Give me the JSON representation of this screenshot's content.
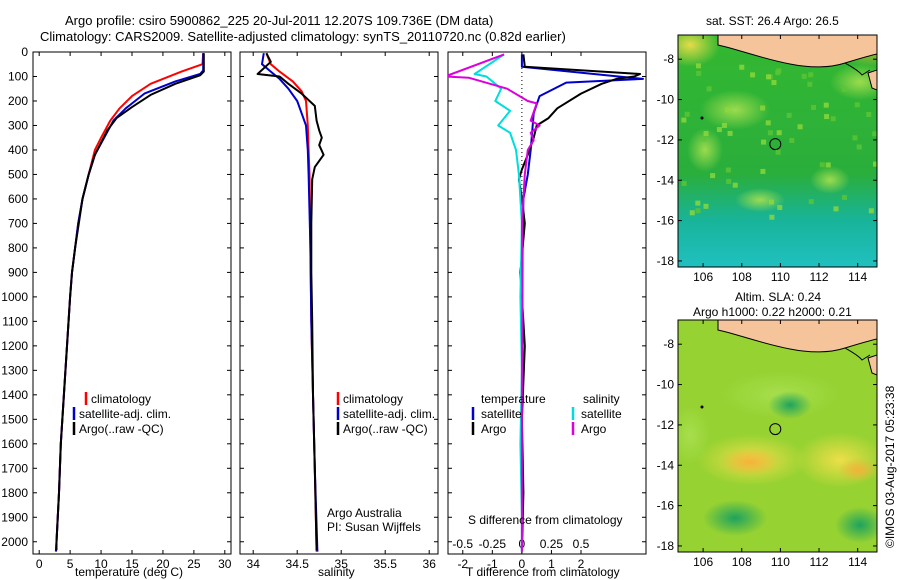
{
  "header": {
    "line1": "Argo profile: csiro 5900862_225 20-Jul-2011 12.207S 109.736E (DM data)",
    "line2": "Climatology: CARS2009. Satellite-adjusted climatology: synTS_20110720.nc (0.82d earlier)"
  },
  "side_note": "©IMOS 03-Aug-2017 05:23:38",
  "colors": {
    "climatology": "#ff0000",
    "satellite": "#0000cc",
    "argo": "#000000",
    "sat_sal": "#00dddd",
    "argo_sal": "#dd00dd",
    "land": "#f5c49b"
  },
  "chart_data": [
    {
      "id": "temperature",
      "type": "line",
      "xlabel": "temperature (deg C)",
      "xlim": [
        -1,
        31
      ],
      "xticks": [
        0,
        5,
        10,
        15,
        20,
        25,
        30
      ],
      "ylim": [
        2050,
        0
      ],
      "yticks": [
        0,
        100,
        200,
        300,
        400,
        500,
        600,
        700,
        800,
        900,
        1000,
        1100,
        1200,
        1300,
        1400,
        1500,
        1600,
        1700,
        1800,
        1900,
        2000
      ],
      "legend": {
        "entries": [
          "climatology",
          "satellite-adj. clim.",
          "Argo(..raw -QC)"
        ]
      },
      "series": [
        {
          "name": "climatology",
          "color": "#ff0000",
          "points": [
            [
              26.5,
              5
            ],
            [
              26.4,
              50
            ],
            [
              23,
              80
            ],
            [
              18,
              130
            ],
            [
              15,
              180
            ],
            [
              13,
              230
            ],
            [
              11.5,
              280
            ],
            [
              10,
              350
            ],
            [
              9,
              400
            ],
            [
              8,
              500
            ],
            [
              7,
              600
            ],
            [
              6.3,
              700
            ],
            [
              5.8,
              800
            ],
            [
              5.3,
              900
            ],
            [
              5,
              1000
            ],
            [
              4.5,
              1200
            ],
            [
              4,
              1400
            ],
            [
              3.5,
              1600
            ],
            [
              3.2,
              1800
            ],
            [
              2.8,
              2000
            ],
            [
              2.7,
              2040
            ]
          ]
        },
        {
          "name": "satellite-adj. clim.",
          "color": "#0000cc",
          "points": [
            [
              26.5,
              5
            ],
            [
              26.5,
              75
            ],
            [
              26,
              90
            ],
            [
              22,
              120
            ],
            [
              17,
              170
            ],
            [
              14,
              230
            ],
            [
              12,
              280
            ],
            [
              10.5,
              350
            ],
            [
              9,
              420
            ],
            [
              8,
              500
            ],
            [
              7,
              600
            ],
            [
              6.3,
              700
            ],
            [
              5.8,
              800
            ],
            [
              5.3,
              900
            ],
            [
              5,
              1000
            ],
            [
              4.5,
              1200
            ],
            [
              4,
              1400
            ],
            [
              3.5,
              1600
            ],
            [
              3.2,
              1800
            ],
            [
              2.8,
              2000
            ],
            [
              2.7,
              2040
            ]
          ]
        },
        {
          "name": "Argo(..raw -QC)",
          "color": "#000000",
          "points": [
            [
              26.6,
              5
            ],
            [
              26.6,
              80
            ],
            [
              26,
              95
            ],
            [
              22,
              130
            ],
            [
              18,
              175
            ],
            [
              15,
              225
            ],
            [
              12.5,
              270
            ],
            [
              11,
              320
            ],
            [
              10,
              370
            ],
            [
              9,
              420
            ],
            [
              8,
              500
            ],
            [
              7,
              600
            ],
            [
              6.4,
              700
            ],
            [
              5.8,
              800
            ],
            [
              5.3,
              900
            ],
            [
              5,
              1000
            ],
            [
              4.5,
              1200
            ],
            [
              4,
              1400
            ],
            [
              3.5,
              1600
            ],
            [
              3.2,
              1800
            ],
            [
              2.8,
              2000
            ],
            [
              2.8,
              2035
            ]
          ]
        }
      ]
    },
    {
      "id": "salinity",
      "type": "line",
      "xlabel": "salinity",
      "xlim": [
        33.85,
        36.1
      ],
      "xticks": [
        34,
        34.5,
        35,
        35.5,
        36
      ],
      "ylim": [
        2050,
        0
      ],
      "legend": {
        "entries": [
          "climatology",
          "satellite-adj. clim.",
          "Argo(..raw -QC)"
        ]
      },
      "annotation": [
        "Argo Australia",
        "PI: Susan Wijffels"
      ],
      "series": [
        {
          "name": "climatology",
          "color": "#ff0000",
          "points": [
            [
              34.15,
              5
            ],
            [
              34.2,
              50
            ],
            [
              34.3,
              80
            ],
            [
              34.45,
              120
            ],
            [
              34.55,
              160
            ],
            [
              34.6,
              200
            ],
            [
              34.62,
              300
            ],
            [
              34.63,
              400
            ],
            [
              34.64,
              500
            ],
            [
              34.65,
              800
            ],
            [
              34.66,
              1100
            ],
            [
              34.68,
              1400
            ],
            [
              34.7,
              1700
            ],
            [
              34.72,
              2040
            ]
          ]
        },
        {
          "name": "satellite-adj. clim.",
          "color": "#0000cc",
          "points": [
            [
              34.12,
              5
            ],
            [
              34.1,
              50
            ],
            [
              34.2,
              80
            ],
            [
              34.3,
              110
            ],
            [
              34.4,
              150
            ],
            [
              34.5,
              200
            ],
            [
              34.55,
              250
            ],
            [
              34.6,
              300
            ],
            [
              34.62,
              400
            ],
            [
              34.63,
              500
            ],
            [
              34.65,
              800
            ],
            [
              34.66,
              1100
            ],
            [
              34.68,
              1400
            ],
            [
              34.7,
              1700
            ],
            [
              34.73,
              2040
            ]
          ]
        },
        {
          "name": "Argo(..raw -QC)",
          "color": "#000000",
          "points": [
            [
              34.15,
              5
            ],
            [
              34.2,
              40
            ],
            [
              34.05,
              90
            ],
            [
              34.3,
              100
            ],
            [
              34.4,
              130
            ],
            [
              34.55,
              170
            ],
            [
              34.7,
              220
            ],
            [
              34.72,
              280
            ],
            [
              34.75,
              320
            ],
            [
              34.78,
              350
            ],
            [
              34.75,
              380
            ],
            [
              34.8,
              420
            ],
            [
              34.7,
              470
            ],
            [
              34.67,
              520
            ],
            [
              34.66,
              700
            ],
            [
              34.66,
              900
            ],
            [
              34.67,
              1100
            ],
            [
              34.68,
              1400
            ],
            [
              34.7,
              1700
            ],
            [
              34.72,
              2035
            ]
          ]
        }
      ]
    },
    {
      "id": "difference",
      "type": "line",
      "xlabel": "T difference from climatology",
      "xlabel_top": "S difference from climatology",
      "xlim": [
        -2.5,
        4.2
      ],
      "xticks": [
        -2,
        -1,
        0,
        1,
        2
      ],
      "xticks_top_labels": [
        "-0.5",
        "-0.25",
        "0",
        "0.25",
        "0.5"
      ],
      "xticks_top_positions": [
        -2,
        -1,
        0,
        1,
        2
      ],
      "ylim": [
        2050,
        0
      ],
      "legend": {
        "left_title": "temperature",
        "right_title": "salinity",
        "entries": [
          "satellite",
          "Argo",
          "satellite",
          "Argo"
        ]
      },
      "series": [
        {
          "name": "temperature satellite",
          "color": "#0000cc",
          "points": [
            [
              0,
              10
            ],
            [
              0,
              60
            ],
            [
              4.1,
              110
            ],
            [
              1.5,
              125
            ],
            [
              0.6,
              180
            ],
            [
              0.4,
              250
            ],
            [
              0.3,
              400
            ],
            [
              0.2,
              500
            ],
            [
              0.05,
              600
            ],
            [
              0.02,
              800
            ],
            [
              0.02,
              1100
            ],
            [
              0,
              1500
            ],
            [
              0.02,
              1900
            ],
            [
              0,
              2040
            ]
          ]
        },
        {
          "name": "temperature Argo",
          "color": "#000000",
          "points": [
            [
              0.05,
              10
            ],
            [
              0.1,
              60
            ],
            [
              4,
              90
            ],
            [
              3.8,
              100
            ],
            [
              3.2,
              110
            ],
            [
              2.7,
              130
            ],
            [
              2,
              170
            ],
            [
              1.2,
              230
            ],
            [
              0.9,
              270
            ],
            [
              0.5,
              300
            ],
            [
              0.4,
              350
            ],
            [
              0.2,
              420
            ],
            [
              0,
              480
            ],
            [
              -0.1,
              520
            ],
            [
              0,
              600
            ],
            [
              0.1,
              700
            ],
            [
              -0.05,
              900
            ],
            [
              0,
              1000
            ],
            [
              0.1,
              1200
            ],
            [
              0,
              1500
            ],
            [
              0.05,
              1800
            ],
            [
              0,
              2030
            ]
          ]
        },
        {
          "name": "salinity satellite",
          "color": "#00dddd",
          "points": [
            [
              -0.6,
              10
            ],
            [
              -1.6,
              90
            ],
            [
              -1.2,
              100
            ],
            [
              -0.7,
              150
            ],
            [
              -0.9,
              200
            ],
            [
              -0.4,
              240
            ],
            [
              -0.8,
              300
            ],
            [
              -0.4,
              330
            ],
            [
              -0.2,
              400
            ],
            [
              -0.1,
              500
            ],
            [
              0,
              700
            ],
            [
              -0.05,
              1000
            ],
            [
              0,
              1300
            ],
            [
              -0.05,
              1600
            ],
            [
              0,
              1900
            ],
            [
              0,
              2040
            ]
          ]
        },
        {
          "name": "salinity Argo",
          "color": "#dd00dd",
          "points": [
            [
              -0.6,
              10
            ],
            [
              -2.6,
              100
            ],
            [
              -1.8,
              105
            ],
            [
              -0.5,
              150
            ],
            [
              0.2,
              200
            ],
            [
              0.5,
              210
            ],
            [
              0.3,
              280
            ],
            [
              0.6,
              300
            ],
            [
              0.3,
              330
            ],
            [
              0.4,
              360
            ],
            [
              0.2,
              400
            ],
            [
              0.1,
              500
            ],
            [
              0,
              700
            ],
            [
              0.02,
              1000
            ],
            [
              0,
              1300
            ],
            [
              0,
              1700
            ],
            [
              0,
              2040
            ]
          ]
        }
      ]
    },
    {
      "id": "sst_map",
      "type": "heatmap",
      "title": "sat. SST: 26.4 Argo: 26.5",
      "xlim": [
        104.7,
        115
      ],
      "ylim": [
        -18.3,
        -6.8
      ],
      "xticks": [
        106,
        108,
        110,
        112,
        114
      ],
      "yticks": [
        -8,
        -10,
        -12,
        -14,
        -16,
        -18
      ],
      "marker": {
        "lon": 109.736,
        "lat": -12.207
      }
    },
    {
      "id": "sla_map",
      "type": "heatmap",
      "title": "Altim. SLA: 0.24",
      "subtitle": "Argo h1000: 0.22 h2000: 0.21",
      "xlim": [
        104.7,
        115
      ],
      "ylim": [
        -18.3,
        -6.8
      ],
      "xticks": [
        106,
        108,
        110,
        112,
        114
      ],
      "yticks": [
        -8,
        -10,
        -12,
        -14,
        -16,
        -18
      ],
      "marker": {
        "lon": 109.736,
        "lat": -12.207
      }
    }
  ]
}
